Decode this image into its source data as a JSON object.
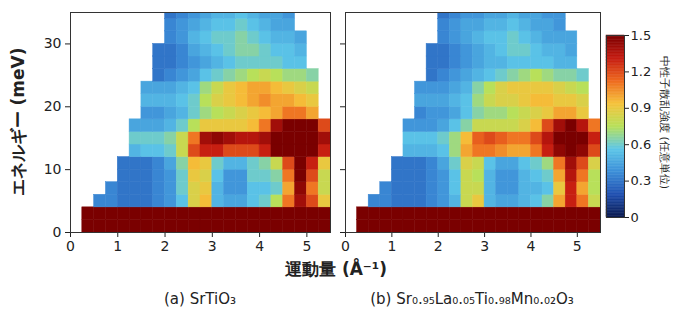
{
  "chart_data": [
    {
      "type": "heatmap",
      "title": "(a) SrTiO₃",
      "xlabel": "運動量 (Å⁻¹)",
      "ylabel": "エネルギー (meV)",
      "xlim": [
        0,
        5.5
      ],
      "ylim": [
        0,
        35
      ],
      "xticks": [
        0,
        1,
        2,
        3,
        4,
        5
      ],
      "yticks": [
        0,
        10,
        20,
        30
      ],
      "x_bins": [
        0.25,
        0.5,
        0.75,
        1,
        1.25,
        1.5,
        1.75,
        2,
        2.25,
        2.5,
        2.75,
        3,
        3.25,
        3.5,
        3.75,
        4,
        4.25,
        4.5,
        4.75,
        5,
        5.25,
        5.5
      ],
      "y_bins": [
        0,
        2,
        4,
        6,
        8,
        10,
        12,
        14,
        16,
        18,
        20,
        22,
        24,
        26,
        28,
        30,
        32,
        34,
        35
      ],
      "values": [
        [
          1.5,
          1.5,
          1.5,
          1.5,
          1.5,
          1.5,
          1.5,
          1.5,
          1.5,
          1.5,
          1.5,
          1.5,
          1.5,
          1.5,
          1.5,
          1.5,
          1.5,
          1.5,
          1.5,
          1.5,
          1.5
        ],
        [
          1.5,
          1.5,
          1.5,
          1.5,
          1.5,
          1.5,
          1.5,
          1.5,
          1.5,
          1.5,
          1.5,
          1.5,
          1.5,
          1.5,
          1.5,
          1.5,
          1.5,
          1.5,
          1.5,
          1.5,
          1.5
        ],
        [
          null,
          0.35,
          0.35,
          0.3,
          0.3,
          0.3,
          0.35,
          0.4,
          0.55,
          0.85,
          0.95,
          0.5,
          0.45,
          0.45,
          0.55,
          0.6,
          0.75,
          1.1,
          1.4,
          1.2,
          0.9
        ],
        [
          null,
          null,
          0.35,
          0.3,
          0.3,
          0.3,
          0.35,
          0.4,
          0.6,
          0.85,
          0.9,
          0.5,
          0.4,
          0.4,
          0.55,
          0.55,
          0.6,
          1.0,
          1.45,
          1.1,
          0.8
        ],
        [
          null,
          null,
          null,
          0.3,
          0.3,
          0.3,
          0.35,
          0.4,
          0.6,
          0.9,
          0.85,
          0.55,
          0.4,
          0.4,
          0.6,
          0.6,
          0.65,
          1.1,
          1.5,
          1.2,
          0.8
        ],
        [
          null,
          null,
          null,
          0.3,
          0.3,
          0.3,
          0.35,
          0.45,
          0.65,
          0.95,
          0.9,
          0.6,
          0.5,
          0.5,
          0.6,
          0.65,
          0.8,
          1.2,
          1.5,
          1.3,
          0.9
        ],
        [
          null,
          null,
          null,
          null,
          0.5,
          0.55,
          0.55,
          0.6,
          0.8,
          1.2,
          1.3,
          1.3,
          1.2,
          1.2,
          1.2,
          1.3,
          1.5,
          1.5,
          1.5,
          1.5,
          1.3
        ],
        [
          null,
          null,
          null,
          null,
          0.6,
          0.6,
          0.6,
          0.65,
          0.8,
          1.1,
          1.4,
          1.45,
          1.4,
          1.35,
          1.35,
          1.4,
          1.5,
          1.5,
          1.5,
          1.5,
          1.4
        ],
        [
          null,
          null,
          null,
          null,
          0.45,
          0.45,
          0.45,
          0.5,
          0.6,
          0.75,
          0.9,
          0.9,
          0.9,
          0.9,
          0.95,
          1.1,
          1.4,
          1.5,
          1.5,
          1.5,
          1.2
        ],
        [
          null,
          null,
          null,
          null,
          null,
          0.4,
          0.4,
          0.45,
          0.5,
          0.6,
          0.7,
          0.75,
          0.8,
          0.85,
          0.9,
          0.95,
          1.0,
          1.1,
          1.1,
          1.0,
          null
        ],
        [
          null,
          null,
          null,
          null,
          null,
          0.5,
          0.5,
          0.5,
          0.55,
          0.6,
          0.75,
          0.85,
          0.9,
          0.95,
          1.0,
          1.05,
          1.0,
          1.0,
          0.95,
          0.9,
          null
        ],
        [
          null,
          null,
          null,
          null,
          null,
          0.45,
          0.45,
          0.45,
          0.5,
          0.55,
          0.7,
          0.8,
          0.9,
          0.95,
          1.0,
          1.0,
          0.95,
          0.9,
          0.85,
          0.8,
          null
        ],
        [
          null,
          null,
          null,
          null,
          null,
          null,
          0.3,
          0.35,
          0.4,
          0.45,
          0.55,
          0.6,
          0.65,
          0.7,
          0.75,
          0.8,
          0.75,
          0.7,
          0.7,
          0.65,
          null
        ],
        [
          null,
          null,
          null,
          null,
          null,
          null,
          0.3,
          0.3,
          0.35,
          0.4,
          0.45,
          0.5,
          0.55,
          0.6,
          0.6,
          0.6,
          0.6,
          0.55,
          0.55,
          null,
          null
        ],
        [
          null,
          null,
          null,
          null,
          null,
          null,
          0.3,
          0.3,
          0.35,
          0.45,
          0.5,
          0.55,
          0.6,
          0.65,
          0.65,
          0.6,
          0.55,
          0.55,
          0.5,
          null,
          null
        ],
        [
          null,
          null,
          null,
          null,
          null,
          null,
          null,
          0.35,
          0.4,
          0.5,
          0.55,
          0.6,
          0.6,
          0.65,
          0.6,
          0.55,
          0.5,
          0.5,
          0.45,
          null,
          null
        ],
        [
          null,
          null,
          null,
          null,
          null,
          null,
          null,
          0.35,
          0.4,
          0.45,
          0.5,
          0.55,
          0.55,
          0.6,
          0.55,
          0.5,
          0.45,
          0.45,
          null,
          null,
          null
        ],
        [
          null,
          null,
          null,
          null,
          null,
          null,
          null,
          0.3,
          0.35,
          0.4,
          0.45,
          0.5,
          0.5,
          0.55,
          0.5,
          0.45,
          0.45,
          0.4,
          null,
          null,
          null
        ]
      ]
    },
    {
      "type": "heatmap",
      "title": "(b) Sr₀.₉₅La₀.₀₅Ti₀.₉₈Mn₀.₀₂O₃",
      "tick_labels": "x",
      "xlim": [
        0,
        5.5
      ],
      "ylim": [
        0,
        35
      ],
      "xticks": [
        0,
        1,
        2,
        3,
        4,
        5
      ],
      "yticks": [
        0,
        10,
        20,
        30
      ],
      "x_bins": [
        0.25,
        0.5,
        0.75,
        1,
        1.25,
        1.5,
        1.75,
        2,
        2.25,
        2.5,
        2.75,
        3,
        3.25,
        3.5,
        3.75,
        4,
        4.25,
        4.5,
        4.75,
        5,
        5.25,
        5.5
      ],
      "y_bins": [
        0,
        2,
        4,
        6,
        8,
        10,
        12,
        14,
        16,
        18,
        20,
        22,
        24,
        26,
        28,
        30,
        32,
        34,
        35
      ],
      "values": [
        [
          1.5,
          1.5,
          1.5,
          1.5,
          1.5,
          1.5,
          1.5,
          1.5,
          1.5,
          1.5,
          1.5,
          1.5,
          1.5,
          1.5,
          1.5,
          1.5,
          1.5,
          1.5,
          1.5,
          1.5,
          1.5
        ],
        [
          1.5,
          1.5,
          1.5,
          1.5,
          1.5,
          1.5,
          1.5,
          1.5,
          1.5,
          1.5,
          1.5,
          1.5,
          1.5,
          1.5,
          1.5,
          1.5,
          1.5,
          1.5,
          1.5,
          1.5,
          1.5
        ],
        [
          null,
          0.35,
          0.35,
          0.3,
          0.3,
          0.3,
          0.35,
          0.4,
          0.5,
          0.8,
          0.9,
          0.5,
          0.45,
          0.45,
          0.5,
          0.55,
          0.65,
          1.0,
          1.3,
          1.1,
          0.8
        ],
        [
          null,
          null,
          0.35,
          0.3,
          0.3,
          0.3,
          0.35,
          0.4,
          0.55,
          0.8,
          0.8,
          0.5,
          0.4,
          0.4,
          0.5,
          0.5,
          0.55,
          0.9,
          1.3,
          1.0,
          0.75
        ],
        [
          null,
          null,
          null,
          0.3,
          0.3,
          0.3,
          0.35,
          0.4,
          0.55,
          0.8,
          0.75,
          0.5,
          0.4,
          0.4,
          0.5,
          0.55,
          0.6,
          1.0,
          1.35,
          1.1,
          0.75
        ],
        [
          null,
          null,
          null,
          0.3,
          0.3,
          0.3,
          0.35,
          0.45,
          0.6,
          0.85,
          0.8,
          0.55,
          0.45,
          0.45,
          0.55,
          0.6,
          0.7,
          1.1,
          1.4,
          1.2,
          0.85
        ],
        [
          null,
          null,
          null,
          null,
          0.5,
          0.5,
          0.5,
          0.55,
          0.7,
          1.0,
          1.1,
          1.1,
          1.05,
          1.0,
          1.0,
          1.1,
          1.3,
          1.45,
          1.5,
          1.45,
          1.2
        ],
        [
          null,
          null,
          null,
          null,
          0.55,
          0.55,
          0.55,
          0.6,
          0.7,
          0.95,
          1.15,
          1.2,
          1.15,
          1.1,
          1.1,
          1.2,
          1.35,
          1.5,
          1.5,
          1.5,
          1.3
        ],
        [
          null,
          null,
          null,
          null,
          0.4,
          0.4,
          0.4,
          0.45,
          0.55,
          0.65,
          0.8,
          0.8,
          0.8,
          0.8,
          0.85,
          0.95,
          1.2,
          1.4,
          1.5,
          1.35,
          1.1
        ],
        [
          null,
          null,
          null,
          null,
          null,
          0.35,
          0.4,
          0.4,
          0.45,
          0.55,
          0.65,
          0.7,
          0.7,
          0.75,
          0.8,
          0.85,
          0.9,
          1.0,
          1.0,
          0.9,
          null
        ],
        [
          null,
          null,
          null,
          null,
          null,
          0.45,
          0.45,
          0.45,
          0.5,
          0.55,
          0.7,
          0.8,
          0.85,
          0.85,
          0.9,
          0.95,
          0.95,
          0.9,
          0.9,
          0.85,
          null
        ],
        [
          null,
          null,
          null,
          null,
          null,
          0.4,
          0.4,
          0.4,
          0.45,
          0.5,
          0.65,
          0.75,
          0.85,
          0.9,
          0.9,
          0.9,
          0.9,
          0.85,
          0.8,
          0.75,
          null
        ],
        [
          null,
          null,
          null,
          null,
          null,
          null,
          0.3,
          0.35,
          0.4,
          0.45,
          0.5,
          0.55,
          0.6,
          0.65,
          0.7,
          0.75,
          0.7,
          0.65,
          0.65,
          0.6,
          null
        ],
        [
          null,
          null,
          null,
          null,
          null,
          null,
          0.3,
          0.3,
          0.35,
          0.4,
          0.45,
          0.5,
          0.5,
          0.55,
          0.55,
          0.55,
          0.55,
          0.5,
          0.5,
          null,
          null
        ],
        [
          null,
          null,
          null,
          null,
          null,
          null,
          0.3,
          0.3,
          0.35,
          0.4,
          0.45,
          0.5,
          0.55,
          0.6,
          0.6,
          0.55,
          0.5,
          0.5,
          0.45,
          null,
          null
        ],
        [
          null,
          null,
          null,
          null,
          null,
          null,
          null,
          0.35,
          0.4,
          0.45,
          0.5,
          0.55,
          0.55,
          0.6,
          0.55,
          0.5,
          0.45,
          0.45,
          0.45,
          null,
          null
        ],
        [
          null,
          null,
          null,
          null,
          null,
          null,
          null,
          0.35,
          0.4,
          0.45,
          0.45,
          0.5,
          0.5,
          0.55,
          0.5,
          0.45,
          0.45,
          0.4,
          null,
          null,
          null
        ],
        [
          null,
          null,
          null,
          null,
          null,
          null,
          null,
          0.3,
          0.35,
          0.4,
          0.4,
          0.45,
          0.45,
          0.5,
          0.45,
          0.45,
          0.4,
          0.4,
          null,
          null,
          null
        ]
      ],
      "colorbar": {
        "label": "中性子散乱強度 (任意単位)",
        "range": [
          0,
          1.5
        ],
        "ticks": [
          0,
          0.3,
          0.6,
          0.9,
          1.2,
          1.5
        ]
      }
    }
  ]
}
